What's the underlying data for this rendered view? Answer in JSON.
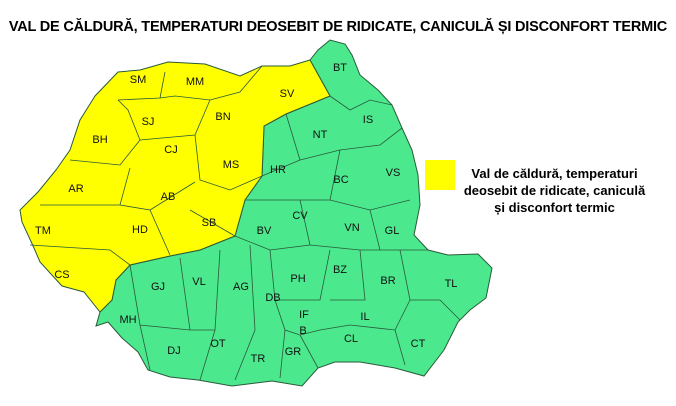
{
  "title": "VAL DE CĂLDURĂ, TEMPERATURI DEOSEBIT DE RIDICATE, CANICULĂ ȘI DISCONFORT TERMIC",
  "colors": {
    "warning": "#FFFF00",
    "no_warning": "#4CE88E",
    "border": "#2a5a3a"
  },
  "legend": {
    "color": "#FFFF00",
    "label": "Val de căldură, temperaturi deosebit de ridicate, caniculă și disconfort termic"
  },
  "counties_warning": [
    "SM",
    "MM",
    "SV",
    "BH",
    "SJ",
    "BN",
    "CJ",
    "MS",
    "AR",
    "AB",
    "TM",
    "HD",
    "SB",
    "CS"
  ],
  "counties_no_warning": [
    "BT",
    "IS",
    "NT",
    "HR",
    "BC",
    "VS",
    "CV",
    "BV",
    "VN",
    "GL",
    "BZ",
    "BR",
    "TL",
    "PH",
    "DB",
    "AG",
    "VL",
    "GJ",
    "MH",
    "DJ",
    "OT",
    "TR",
    "GR",
    "IF",
    "B",
    "IL",
    "CL",
    "CT"
  ]
}
